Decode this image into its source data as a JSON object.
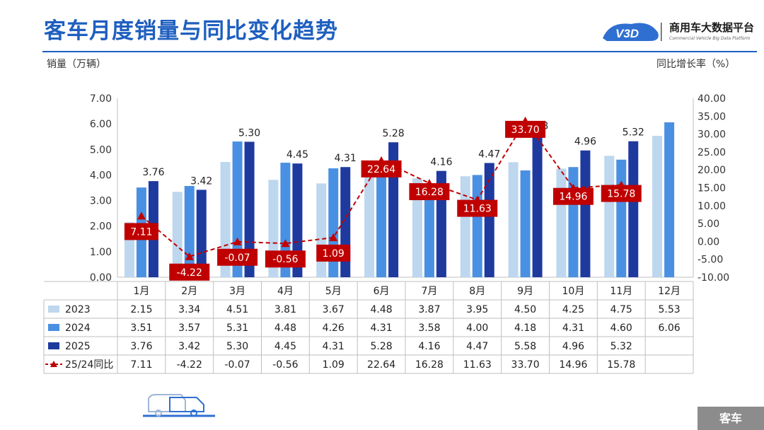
{
  "header": {
    "title": "客车月度销量与同比变化趋势",
    "logo_name": "商用车大数据平台",
    "logo_sub": "Commercial Vehicle Big Data Platform"
  },
  "axes": {
    "left_label": "销量（万辆）",
    "right_label": "同比增长率（%）"
  },
  "footer": {
    "badge": "客车"
  },
  "chart_data": {
    "type": "bar",
    "categories": [
      "1月",
      "2月",
      "3月",
      "4月",
      "5月",
      "6月",
      "7月",
      "8月",
      "9月",
      "10月",
      "11月",
      "12月"
    ],
    "series": [
      {
        "name": "2023",
        "type": "bar",
        "color": "#bdd7ee",
        "values": [
          2.15,
          3.34,
          4.51,
          3.81,
          3.67,
          4.48,
          3.87,
          3.95,
          4.5,
          4.25,
          4.75,
          5.53
        ]
      },
      {
        "name": "2024",
        "type": "bar",
        "color": "#4a90e2",
        "values": [
          3.51,
          3.57,
          5.31,
          4.48,
          4.26,
          4.31,
          3.58,
          4.0,
          4.18,
          4.31,
          4.6,
          6.06
        ]
      },
      {
        "name": "2025",
        "type": "bar",
        "color": "#1f3a9e",
        "values": [
          3.76,
          3.42,
          5.3,
          4.45,
          4.31,
          5.28,
          4.16,
          4.47,
          5.58,
          4.96,
          5.32,
          null
        ]
      },
      {
        "name": "25/24同比",
        "type": "line",
        "axis": "right",
        "color": "#c00000",
        "values": [
          7.11,
          -4.22,
          -0.07,
          -0.56,
          1.09,
          22.64,
          16.28,
          11.63,
          33.7,
          14.96,
          15.78,
          null
        ]
      }
    ],
    "y_left": {
      "min": 0,
      "max": 7,
      "ticks": [
        "0.00",
        "1.00",
        "2.00",
        "3.00",
        "4.00",
        "5.00",
        "6.00",
        "7.00"
      ]
    },
    "y_right": {
      "min": -10,
      "max": 40,
      "ticks": [
        "-10.00",
        "-5.00",
        "0.00",
        "5.00",
        "10.00",
        "15.00",
        "20.00",
        "25.00",
        "30.00",
        "35.00",
        "40.00"
      ]
    },
    "bar_labels_2025": [
      "3.76",
      "3.42",
      "5.30",
      "4.45",
      "4.31",
      "5.28",
      "4.16",
      "4.47",
      "5.58",
      "4.96",
      "5.32",
      ""
    ],
    "table": {
      "rows": [
        {
          "label": "2023",
          "cells": [
            "2.15",
            "3.34",
            "4.51",
            "3.81",
            "3.67",
            "4.48",
            "3.87",
            "3.95",
            "4.50",
            "4.25",
            "4.75",
            "5.53"
          ]
        },
        {
          "label": "2024",
          "cells": [
            "3.51",
            "3.57",
            "5.31",
            "4.48",
            "4.26",
            "4.31",
            "3.58",
            "4.00",
            "4.18",
            "4.31",
            "4.60",
            "6.06"
          ]
        },
        {
          "label": "2025",
          "cells": [
            "3.76",
            "3.42",
            "5.30",
            "4.45",
            "4.31",
            "5.28",
            "4.16",
            "4.47",
            "5.58",
            "4.96",
            "5.32",
            ""
          ]
        },
        {
          "label": "25/24同比",
          "cells": [
            "7.11",
            "-4.22",
            "-0.07",
            "-0.56",
            "1.09",
            "22.64",
            "16.28",
            "11.63",
            "33.70",
            "14.96",
            "15.78",
            ""
          ]
        }
      ]
    }
  }
}
